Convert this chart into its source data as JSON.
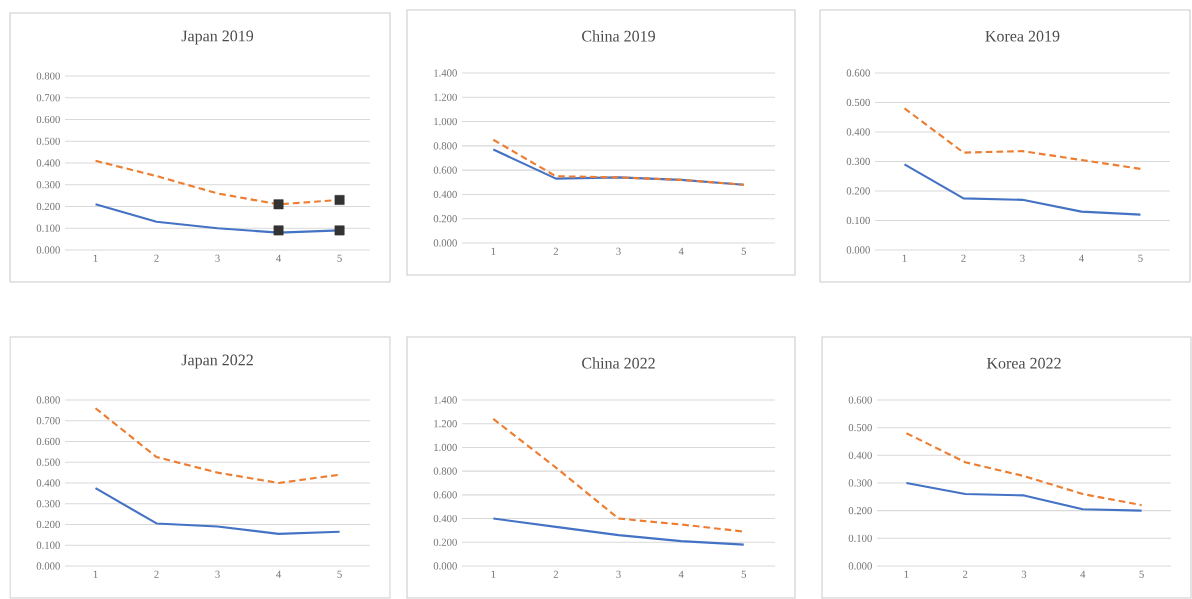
{
  "chart_data": [
    {
      "type": "line",
      "title": "Japan 2019",
      "categories": [
        "1",
        "2",
        "3",
        "4",
        "5"
      ],
      "ylim": [
        0,
        0.8
      ],
      "yticks": [
        {
          "value": 0,
          "label": "0.000"
        },
        {
          "value": 0.1,
          "label": "0.100"
        },
        {
          "value": 0.2,
          "label": "0.200"
        },
        {
          "value": 0.3,
          "label": "0.300"
        },
        {
          "value": 0.4,
          "label": "0.400"
        },
        {
          "value": 0.5,
          "label": "0.500"
        },
        {
          "value": 0.6,
          "label": "0.600"
        },
        {
          "value": 0.7,
          "label": "0.700"
        },
        {
          "value": 0.8,
          "label": "0.800"
        }
      ],
      "grid": "y",
      "series": [
        {
          "color": "#4472c4",
          "line_style": "solid",
          "values": [
            0.21,
            0.13,
            0.1,
            0.08,
            0.09
          ]
        },
        {
          "color": "#ed7d31",
          "line_style": "dashed",
          "values": [
            0.41,
            0.34,
            0.26,
            0.21,
            0.23
          ]
        },
        {
          "type": "scatter",
          "marker": "square",
          "color": "#333333",
          "x": [
            "4",
            "5",
            "4",
            "5"
          ],
          "values": [
            0.09,
            0.09,
            0.21,
            0.23
          ]
        }
      ]
    },
    {
      "type": "line",
      "title": "China 2019",
      "categories": [
        "1",
        "2",
        "3",
        "4",
        "5"
      ],
      "ylim": [
        0,
        1.4
      ],
      "yticks": [
        {
          "value": 0,
          "label": "0.000"
        },
        {
          "value": 0.2,
          "label": "0.200"
        },
        {
          "value": 0.4,
          "label": "0.400"
        },
        {
          "value": 0.6,
          "label": "0.600"
        },
        {
          "value": 0.8,
          "label": "0.800"
        },
        {
          "value": 1.0,
          "label": "1.000"
        },
        {
          "value": 1.2,
          "label": "1.200"
        },
        {
          "value": 1.4,
          "label": "1.400"
        }
      ],
      "grid": "y",
      "series": [
        {
          "color": "#4472c4",
          "line_style": "solid",
          "values": [
            0.77,
            0.53,
            0.54,
            0.52,
            0.48
          ]
        },
        {
          "color": "#ed7d31",
          "line_style": "dashed",
          "values": [
            0.85,
            0.55,
            0.54,
            0.52,
            0.48
          ]
        }
      ]
    },
    {
      "type": "line",
      "title": "Korea 2019",
      "categories": [
        "1",
        "2",
        "3",
        "4",
        "5"
      ],
      "ylim": [
        0,
        0.6
      ],
      "yticks": [
        {
          "value": 0,
          "label": "0.000"
        },
        {
          "value": 0.1,
          "label": "0.100"
        },
        {
          "value": 0.2,
          "label": "0.200"
        },
        {
          "value": 0.3,
          "label": "0.300"
        },
        {
          "value": 0.4,
          "label": "0.400"
        },
        {
          "value": 0.5,
          "label": "0.500"
        },
        {
          "value": 0.6,
          "label": "0.600"
        }
      ],
      "grid": "y",
      "series": [
        {
          "color": "#4472c4",
          "line_style": "solid",
          "values": [
            0.29,
            0.175,
            0.17,
            0.13,
            0.12
          ]
        },
        {
          "color": "#ed7d31",
          "line_style": "dashed",
          "values": [
            0.48,
            0.33,
            0.335,
            0.305,
            0.275
          ]
        }
      ]
    },
    {
      "type": "line",
      "title": "Japan 2022",
      "categories": [
        "1",
        "2",
        "3",
        "4",
        "5"
      ],
      "ylim": [
        0,
        0.8
      ],
      "yticks": [
        {
          "value": 0,
          "label": "0.000"
        },
        {
          "value": 0.1,
          "label": "0.100"
        },
        {
          "value": 0.2,
          "label": "0.200"
        },
        {
          "value": 0.3,
          "label": "0.300"
        },
        {
          "value": 0.4,
          "label": "0.400"
        },
        {
          "value": 0.5,
          "label": "0.500"
        },
        {
          "value": 0.6,
          "label": "0.600"
        },
        {
          "value": 0.7,
          "label": "0.700"
        },
        {
          "value": 0.8,
          "label": "0.800"
        }
      ],
      "grid": "y",
      "series": [
        {
          "color": "#4472c4",
          "line_style": "solid",
          "values": [
            0.375,
            0.205,
            0.19,
            0.155,
            0.165
          ]
        },
        {
          "color": "#ed7d31",
          "line_style": "dashed",
          "values": [
            0.76,
            0.525,
            0.45,
            0.4,
            0.44
          ]
        }
      ]
    },
    {
      "type": "line",
      "title": "China 2022",
      "categories": [
        "1",
        "2",
        "3",
        "4",
        "5"
      ],
      "ylim": [
        0,
        1.4
      ],
      "yticks": [
        {
          "value": 0,
          "label": "0.000"
        },
        {
          "value": 0.2,
          "label": "0.200"
        },
        {
          "value": 0.4,
          "label": "0.400"
        },
        {
          "value": 0.6,
          "label": "0.600"
        },
        {
          "value": 0.8,
          "label": "0.800"
        },
        {
          "value": 1.0,
          "label": "1.000"
        },
        {
          "value": 1.2,
          "label": "1.200"
        },
        {
          "value": 1.4,
          "label": "1.400"
        }
      ],
      "grid": "y",
      "series": [
        {
          "color": "#4472c4",
          "line_style": "solid",
          "values": [
            0.4,
            0.33,
            0.26,
            0.21,
            0.18
          ]
        },
        {
          "color": "#ed7d31",
          "line_style": "dashed",
          "values": [
            1.24,
            0.83,
            0.4,
            0.35,
            0.29
          ]
        }
      ]
    },
    {
      "type": "line",
      "title": "Korea 2022",
      "categories": [
        "1",
        "2",
        "3",
        "4",
        "5"
      ],
      "ylim": [
        0,
        0.6
      ],
      "yticks": [
        {
          "value": 0,
          "label": "0.000"
        },
        {
          "value": 0.1,
          "label": "0.100"
        },
        {
          "value": 0.2,
          "label": "0.200"
        },
        {
          "value": 0.3,
          "label": "0.300"
        },
        {
          "value": 0.4,
          "label": "0.400"
        },
        {
          "value": 0.5,
          "label": "0.500"
        },
        {
          "value": 0.6,
          "label": "0.600"
        }
      ],
      "grid": "y",
      "series": [
        {
          "color": "#4472c4",
          "line_style": "solid",
          "values": [
            0.3,
            0.26,
            0.255,
            0.205,
            0.2
          ]
        },
        {
          "color": "#ed7d31",
          "line_style": "dashed",
          "values": [
            0.48,
            0.375,
            0.325,
            0.26,
            0.22
          ]
        }
      ]
    }
  ]
}
